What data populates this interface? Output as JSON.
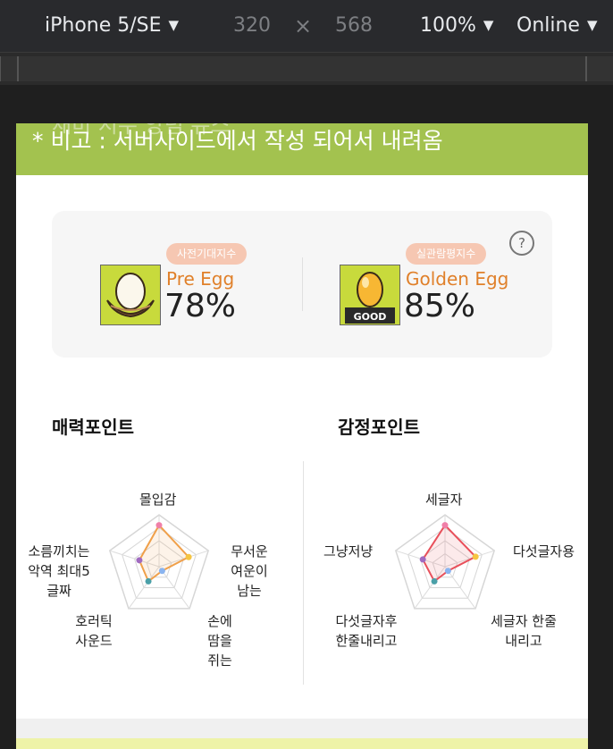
{
  "toolbar": {
    "device": "iPhone 5/SE",
    "width": "320",
    "times": "×",
    "height": "568",
    "zoom": "100%",
    "network": "Online"
  },
  "banner": {
    "ghost_text": "재미 지수 양념 뉴스",
    "text": "* 비고 : 서버사이드에서 작성 되어서 내려옴"
  },
  "eggs": {
    "help_label": "?",
    "pre": {
      "badge": "사전기대지수",
      "name": "Pre Egg",
      "percent": "78%",
      "value": 78
    },
    "golden": {
      "badge": "실관람평지수",
      "name": "Golden Egg",
      "percent": "85%",
      "value": 85,
      "icon_label": "GOOD"
    }
  },
  "charm": {
    "title": "매력포인트",
    "labels": [
      "몰입감",
      "무서운 여운이 남는",
      "손에 땀을 쥐는",
      "호러틱 사운드",
      "소름끼치는 악역 최대5글짜"
    ],
    "values": [
      0.8,
      0.6,
      0.1,
      0.35,
      0.4
    ],
    "color": "#f0a04a"
  },
  "emotion": {
    "title": "감정포인트",
    "labels": [
      "세글자",
      "다섯글자용",
      "세글자 한줄내리고",
      "다섯글자후 한줄내리고",
      "그냥저냥"
    ],
    "values": [
      0.8,
      0.62,
      0.1,
      0.35,
      0.45
    ],
    "color": "#e8505b"
  },
  "point_colors": [
    "#f080a8",
    "#f5c542",
    "#8ab4f0",
    "#4aa0a8",
    "#a06ac0"
  ]
}
